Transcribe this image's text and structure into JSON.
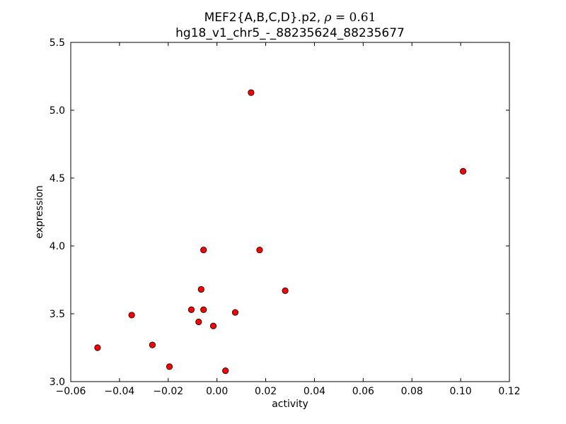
{
  "chart_data": {
    "type": "scatter",
    "title": {
      "prefix": "MEF2{A,B,C,D}.p2, ",
      "rho_symbol": "ρ",
      "rho_expr": " = 0.61",
      "subtitle": "hg18_v1_chr5_-_88235624_88235677"
    },
    "xlabel": "activity",
    "ylabel": "expression",
    "xlim": [
      -0.06,
      0.12
    ],
    "ylim": [
      3.0,
      5.5
    ],
    "xticks": [
      -0.06,
      -0.04,
      -0.02,
      0.0,
      0.02,
      0.04,
      0.06,
      0.08,
      0.1,
      0.12
    ],
    "xtick_labels": [
      "−0.06",
      "−0.04",
      "−0.02",
      "0.00",
      "0.02",
      "0.04",
      "0.06",
      "0.08",
      "0.10",
      "0.12"
    ],
    "yticks": [
      3.0,
      3.5,
      4.0,
      4.5,
      5.0,
      5.5
    ],
    "ytick_labels": [
      "3.0",
      "3.5",
      "4.0",
      "4.5",
      "5.0",
      "5.5"
    ],
    "grid": false,
    "marker_color": "#ff0000",
    "marker_edge_color": "#000000",
    "points": [
      {
        "x": -0.049,
        "y": 3.25
      },
      {
        "x": -0.035,
        "y": 3.49
      },
      {
        "x": -0.0265,
        "y": 3.27
      },
      {
        "x": -0.0195,
        "y": 3.11
      },
      {
        "x": -0.0105,
        "y": 3.53
      },
      {
        "x": -0.0075,
        "y": 3.44
      },
      {
        "x": -0.0065,
        "y": 3.68
      },
      {
        "x": -0.0055,
        "y": 3.53
      },
      {
        "x": -0.0055,
        "y": 3.97
      },
      {
        "x": -0.0015,
        "y": 3.41
      },
      {
        "x": 0.0035,
        "y": 3.08
      },
      {
        "x": 0.0075,
        "y": 3.51
      },
      {
        "x": 0.014,
        "y": 5.13
      },
      {
        "x": 0.0175,
        "y": 3.97
      },
      {
        "x": 0.028,
        "y": 3.67
      },
      {
        "x": 0.101,
        "y": 4.55
      }
    ]
  }
}
